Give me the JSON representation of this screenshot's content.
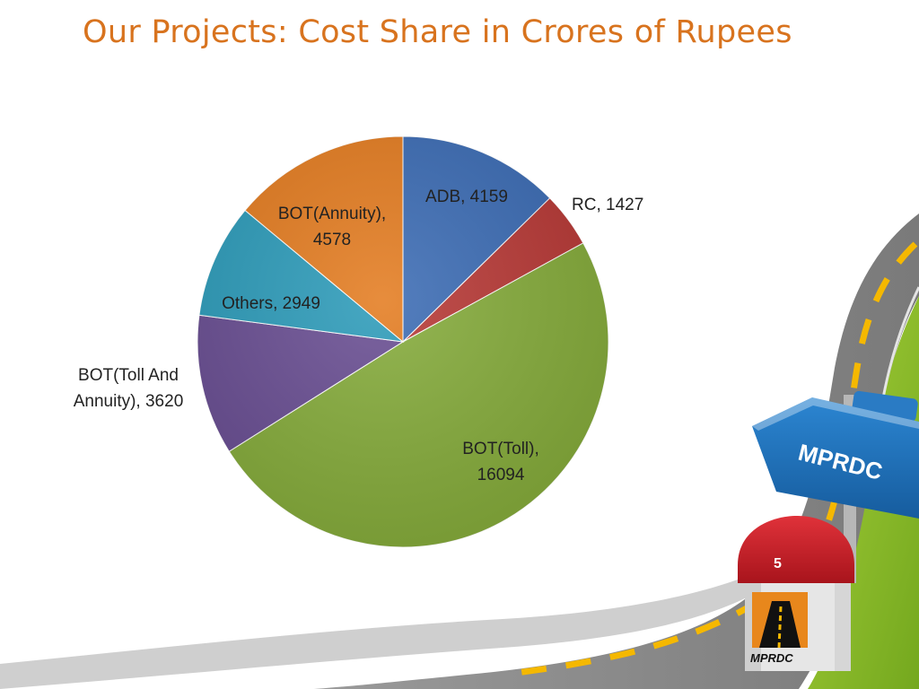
{
  "slide": {
    "title": "Our Projects: Cost Share in Crores of Rupees"
  },
  "signpost": {
    "text": "MPRDC"
  },
  "milestone": {
    "number": "5",
    "logo_text": "MPRDC"
  },
  "colors": {
    "title": "#D8731E",
    "road": "#8C8C8C",
    "road_marking": "#F5B800",
    "grass": "#8CBE2A",
    "sign": "#1F6DB5",
    "milestone_cap": "#C8202A"
  },
  "chart_data": {
    "type": "pie",
    "title": "",
    "start_angle_deg": 0,
    "direction": "clockwise",
    "legend": "none",
    "slices": [
      {
        "label": "ADB",
        "value": 4159,
        "color": "#3D6DB5",
        "data_label": "ADB, 4159"
      },
      {
        "label": "RC",
        "value": 1427,
        "color": "#B83A37",
        "data_label": "RC, 1427"
      },
      {
        "label": "BOT(Toll)",
        "value": 16094,
        "color": "#86AC3C",
        "data_label": "BOT(Toll), 16094"
      },
      {
        "label": "BOT(Toll And Annuity)",
        "value": 3620,
        "color": "#6A4F93",
        "data_label": "BOT(Toll And Annuity), 3620"
      },
      {
        "label": "Others",
        "value": 2949,
        "color": "#2E9CBA",
        "data_label": "Others, 2949"
      },
      {
        "label": "BOT(Annuity)",
        "value": 4578,
        "color": "#E47D22",
        "data_label": "BOT(Annuity), 4578"
      }
    ]
  }
}
